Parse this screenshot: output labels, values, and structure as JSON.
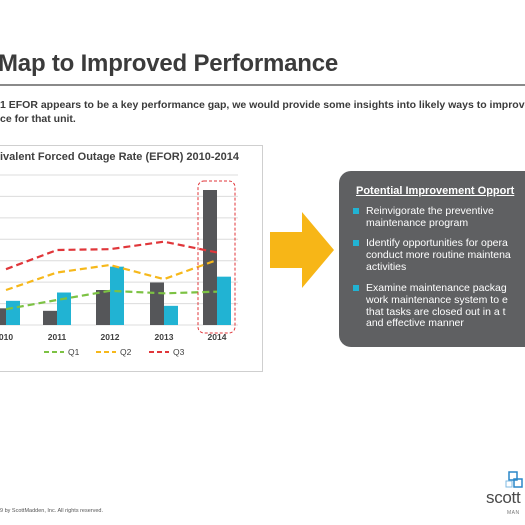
{
  "page": {
    "title": "Map to Improved Performance",
    "intro_line1": "1 EFOR appears to be a key performance gap, we would provide some insights into likely ways to improve",
    "intro_line2": "ce for that unit.",
    "footer": "9 by ScottMadden, Inc. All rights reserved.",
    "logo_text": "scott",
    "logo_sub": "MAN"
  },
  "colors": {
    "dark_bar": "#555659",
    "cyan_bar": "#21b3d3",
    "q1": "#7cc243",
    "q2": "#f6b81b",
    "q3": "#e0363a",
    "arrow": "#f7b617",
    "panel": "#5f6062"
  },
  "chart_data": {
    "type": "bar",
    "title": "ivalent Forced Outage Rate (EFOR) 2010-2014",
    "categories": [
      "010",
      "2011",
      "2012",
      "2013",
      "2014"
    ],
    "ylim": [
      0,
      9
    ],
    "grid": true,
    "series": [
      {
        "values": [
          1.0,
          0.85,
          2.1,
          2.55,
          8.1
        ]
      },
      {
        "values": [
          1.45,
          1.95,
          3.5,
          1.15,
          2.9
        ]
      }
    ],
    "lines": [
      {
        "name": "Q1",
        "values": [
          0.95,
          1.5,
          2.05,
          1.9,
          2.0
        ]
      },
      {
        "name": "Q2",
        "values": [
          2.1,
          3.15,
          3.6,
          2.75,
          3.9
        ]
      },
      {
        "name": "Q3",
        "values": [
          3.35,
          4.5,
          4.55,
          5.0,
          4.35
        ]
      }
    ],
    "legend_position": "bottom"
  },
  "improvement": {
    "title": "Potential Improvement Opport",
    "bullets": [
      {
        "lines": [
          "Reinvigorate the preventive",
          "maintenance program"
        ]
      },
      {
        "lines": [
          "Identify opportunities for opera",
          "conduct more routine maintena",
          "activities"
        ]
      },
      {
        "lines": [
          "Examine maintenance packag",
          "work maintenance system to e",
          "that tasks are closed out in a t",
          "and effective manner"
        ]
      }
    ]
  }
}
